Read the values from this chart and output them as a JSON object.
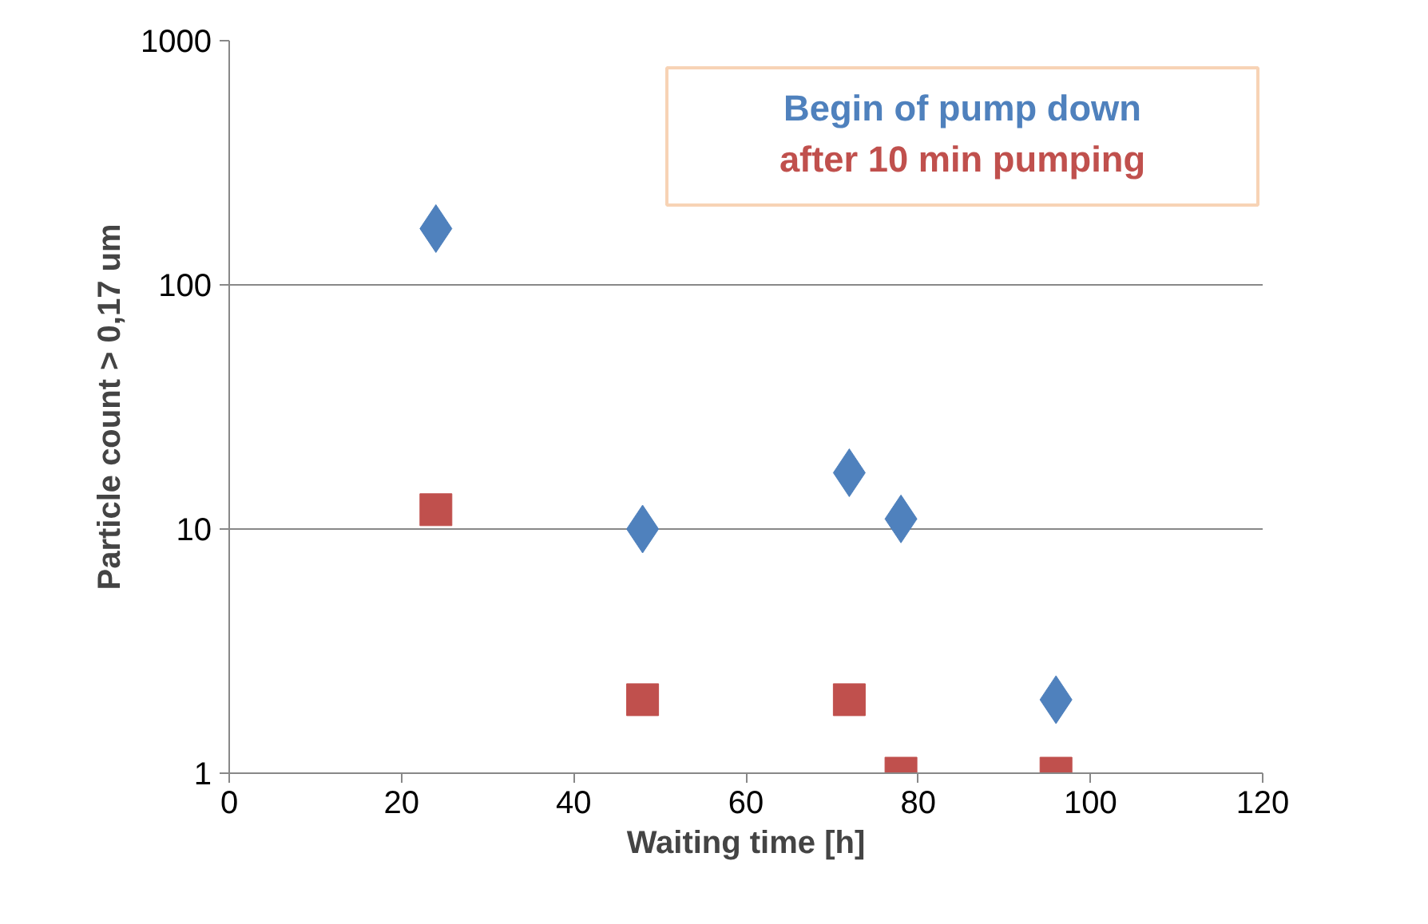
{
  "chart_data": {
    "type": "scatter",
    "xlabel": "Waiting time [h]",
    "ylabel": "Particle count > 0,17 um",
    "x": [
      24,
      48,
      72,
      78,
      96
    ],
    "series": [
      {
        "name": "Begin of pump down",
        "color": "#4f81bd",
        "marker": "diamond",
        "values": [
          170,
          10,
          17,
          11,
          2
        ]
      },
      {
        "name": "after 10 min pumping",
        "color": "#c0504d",
        "marker": "square",
        "values": [
          12,
          2,
          2,
          1,
          1
        ]
      }
    ],
    "xlim": [
      0,
      120
    ],
    "xticks": [
      0,
      20,
      40,
      60,
      80,
      100,
      120
    ],
    "ylim": [
      1,
      1000
    ],
    "yticks": [
      1,
      10,
      100,
      1000
    ],
    "log": "y",
    "grid": "y"
  }
}
